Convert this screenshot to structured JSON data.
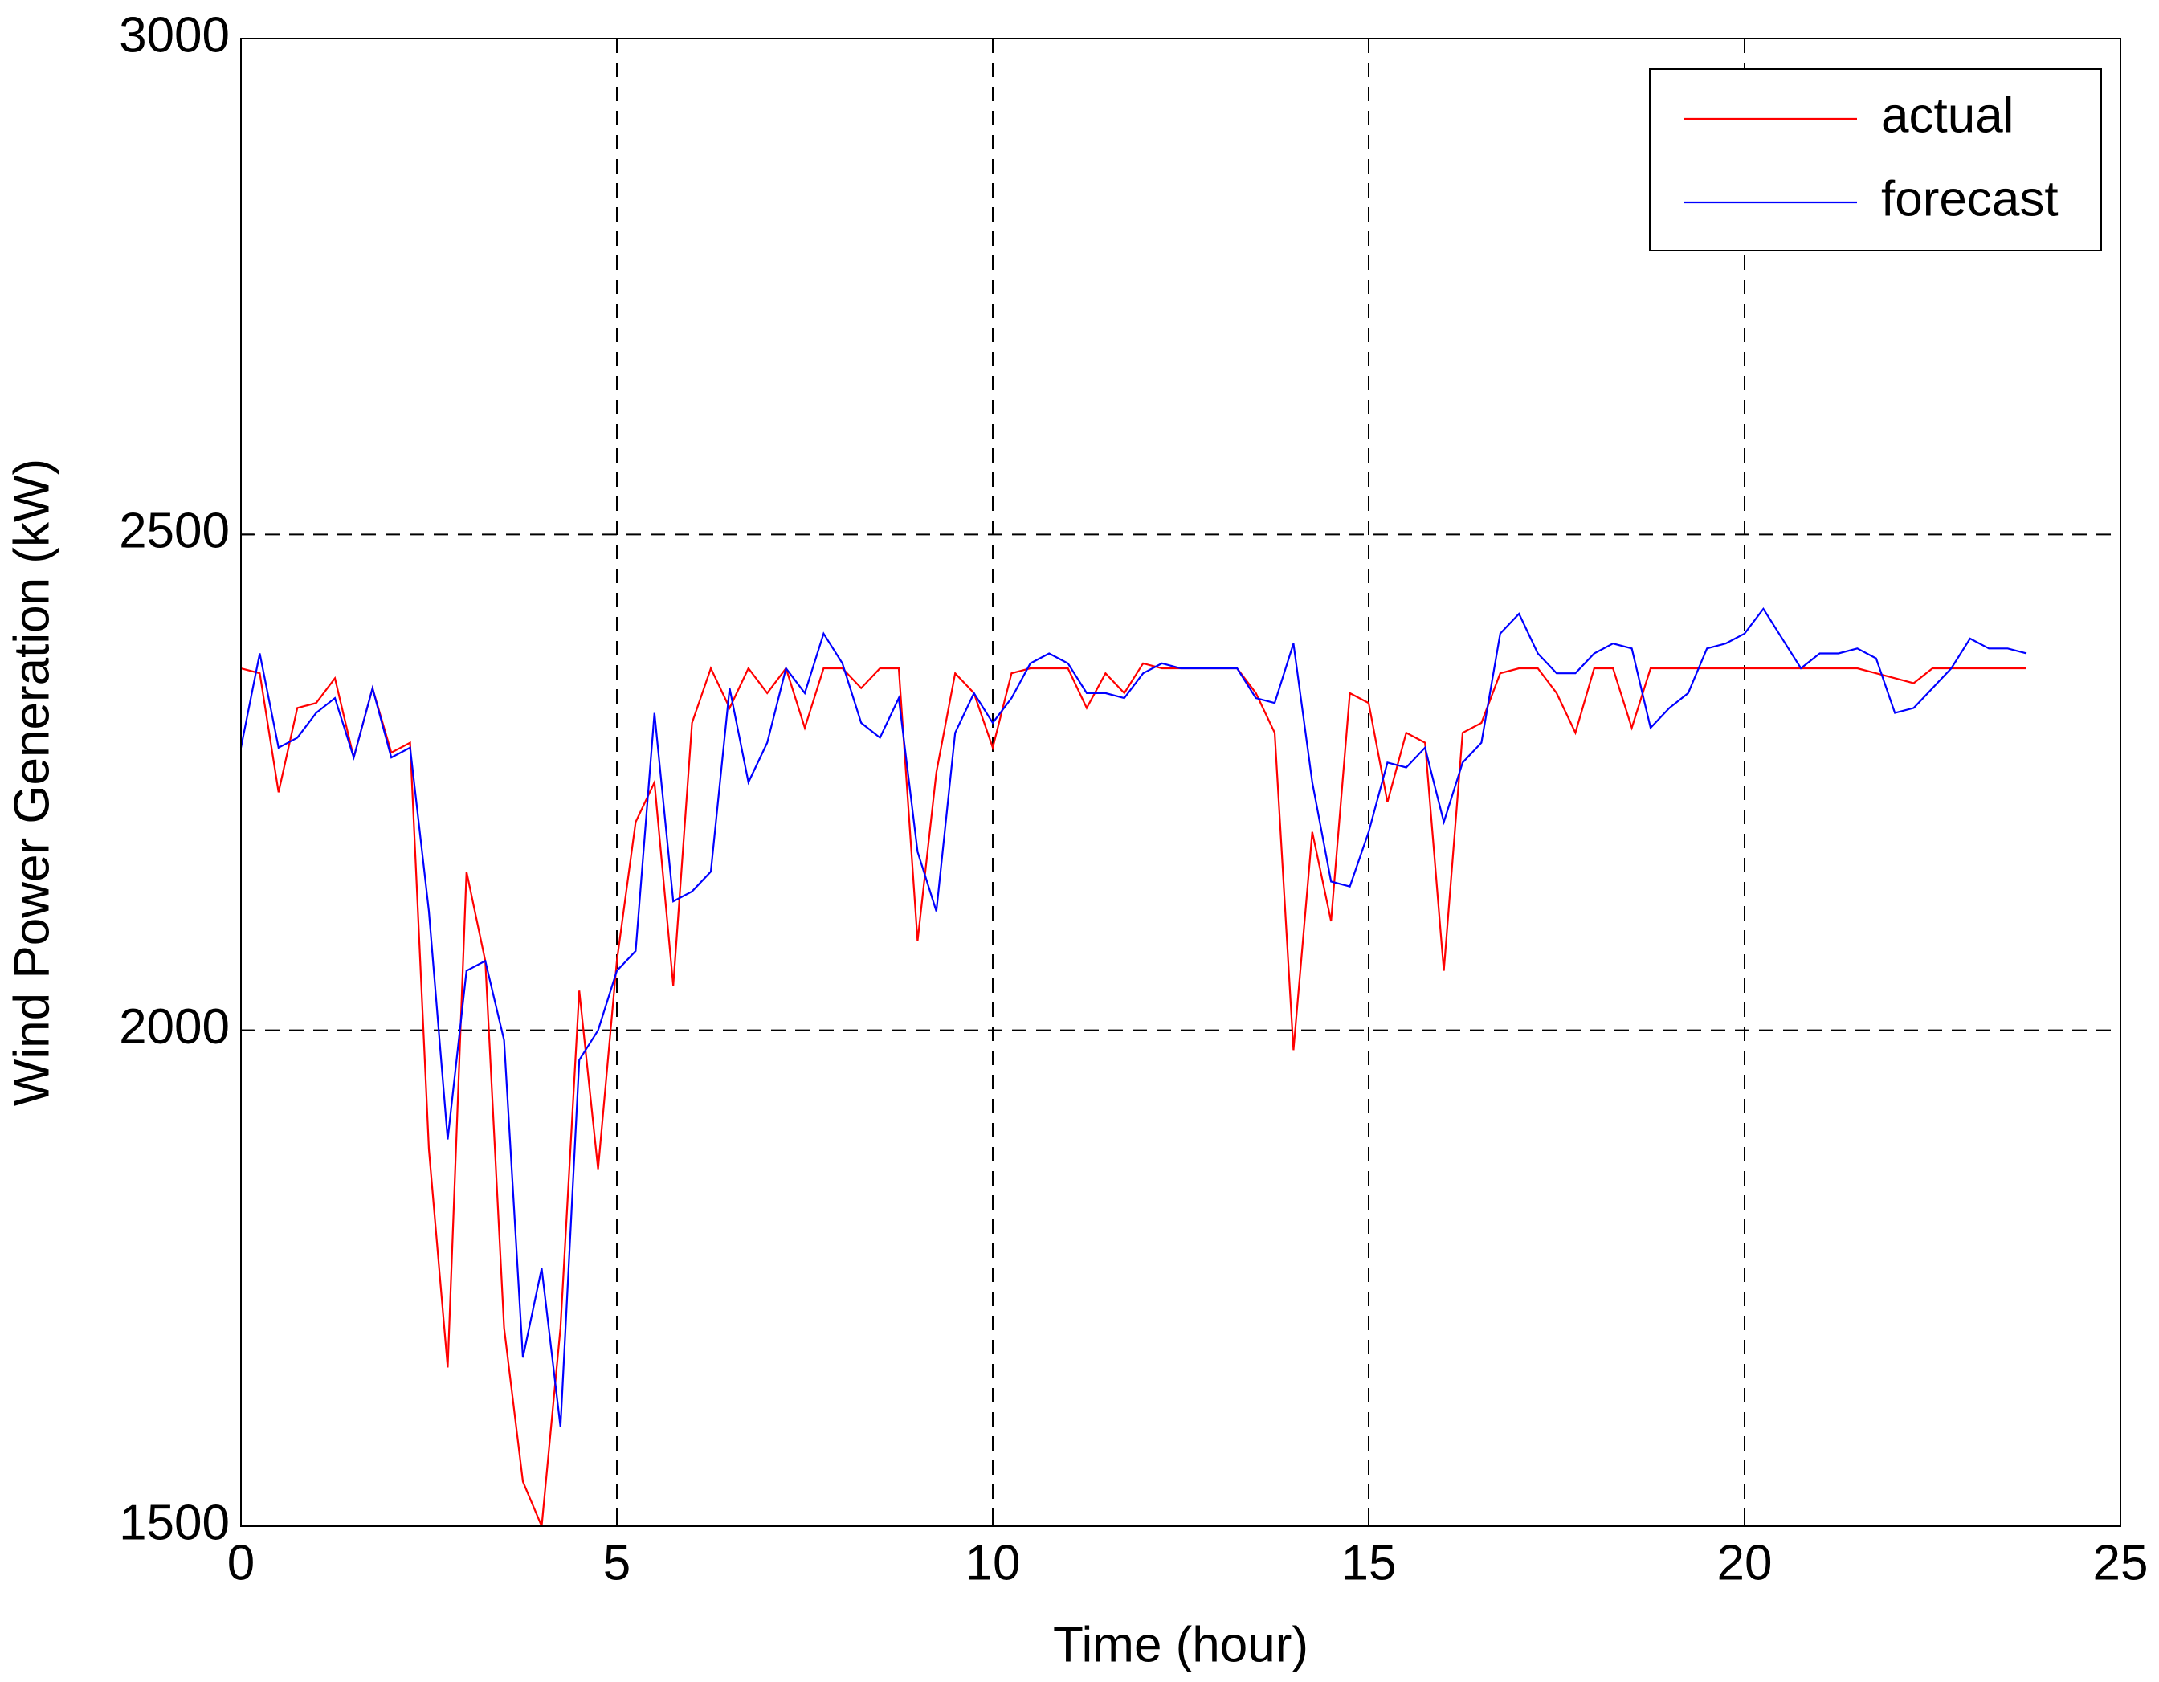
{
  "chart_data": {
    "type": "line",
    "xlabel": "Time (hour)",
    "ylabel": "Wind Power Generation (kW)",
    "xlim": [
      0,
      25
    ],
    "ylim": [
      1500,
      3000
    ],
    "xticks": [
      0,
      5,
      10,
      15,
      20,
      25
    ],
    "yticks": [
      1500,
      2000,
      2500,
      3000
    ],
    "grid": true,
    "legend": "upper right",
    "x": [
      0,
      0.25,
      0.5,
      0.75,
      1,
      1.25,
      1.5,
      1.75,
      2,
      2.25,
      2.5,
      2.75,
      3,
      3.25,
      3.5,
      3.75,
      4,
      4.25,
      4.5,
      4.75,
      5,
      5.25,
      5.5,
      5.75,
      6,
      6.25,
      6.5,
      6.75,
      7,
      7.25,
      7.5,
      7.75,
      8,
      8.25,
      8.5,
      8.75,
      9,
      9.25,
      9.5,
      9.75,
      10,
      10.25,
      10.5,
      10.75,
      11,
      11.25,
      11.5,
      11.75,
      12,
      12.25,
      12.5,
      12.75,
      13,
      13.25,
      13.5,
      13.75,
      14,
      14.25,
      14.5,
      14.75,
      15,
      15.25,
      15.5,
      15.75,
      16,
      16.25,
      16.5,
      16.75,
      17,
      17.25,
      17.5,
      17.75,
      18,
      18.25,
      18.5,
      18.75,
      19,
      19.25,
      19.5,
      19.75,
      20,
      20.25,
      20.5,
      20.75,
      21,
      21.25,
      21.5,
      21.75,
      22,
      22.25,
      22.5,
      22.75,
      23,
      23.25,
      23.5,
      23.75
    ],
    "series": [
      {
        "name": "actual",
        "color": "#ff0000",
        "values": [
          2365,
          2360,
          2240,
          2325,
          2330,
          2355,
          2275,
          2345,
          2280,
          2290,
          1880,
          1660,
          2160,
          2070,
          1700,
          1545,
          1500,
          1700,
          2040,
          1860,
          2070,
          2210,
          2250,
          2045,
          2310,
          2365,
          2325,
          2365,
          2340,
          2365,
          2305,
          2365,
          2365,
          2345,
          2365,
          2365,
          2090,
          2260,
          2360,
          2340,
          2285,
          2360,
          2365,
          2365,
          2365,
          2325,
          2360,
          2340,
          2370,
          2365,
          2365,
          2365,
          2365,
          2365,
          2340,
          2300,
          1980,
          2200,
          2110,
          2340,
          2330,
          2230,
          2300,
          2290,
          2060,
          2300,
          2310,
          2360,
          2365,
          2365,
          2340,
          2300,
          2365,
          2365,
          2305,
          2365,
          2365,
          2365,
          2365,
          2365,
          2365,
          2365,
          2365,
          2365,
          2365,
          2365,
          2365,
          2360,
          2355,
          2350,
          2365,
          2365,
          2365,
          2365,
          2365,
          2365
        ]
      },
      {
        "name": "forecast",
        "color": "#0000ff",
        "values": [
          2285,
          2380,
          2285,
          2295,
          2320,
          2335,
          2275,
          2345,
          2275,
          2285,
          2120,
          1890,
          2060,
          2070,
          1990,
          1670,
          1760,
          1600,
          1970,
          2000,
          2060,
          2080,
          2320,
          2130,
          2140,
          2160,
          2345,
          2250,
          2290,
          2365,
          2340,
          2400,
          2370,
          2310,
          2295,
          2335,
          2180,
          2120,
          2300,
          2340,
          2310,
          2335,
          2370,
          2380,
          2370,
          2340,
          2340,
          2335,
          2360,
          2370,
          2365,
          2365,
          2365,
          2365,
          2335,
          2330,
          2390,
          2250,
          2150,
          2145,
          2200,
          2270,
          2265,
          2285,
          2210,
          2270,
          2290,
          2400,
          2420,
          2380,
          2360,
          2360,
          2380,
          2390,
          2385,
          2305,
          2325,
          2340,
          2385,
          2390,
          2400,
          2425,
          2395,
          2365,
          2380,
          2380,
          2385,
          2375,
          2320,
          2325,
          2345,
          2365,
          2395,
          2385,
          2385,
          2380
        ]
      }
    ]
  }
}
